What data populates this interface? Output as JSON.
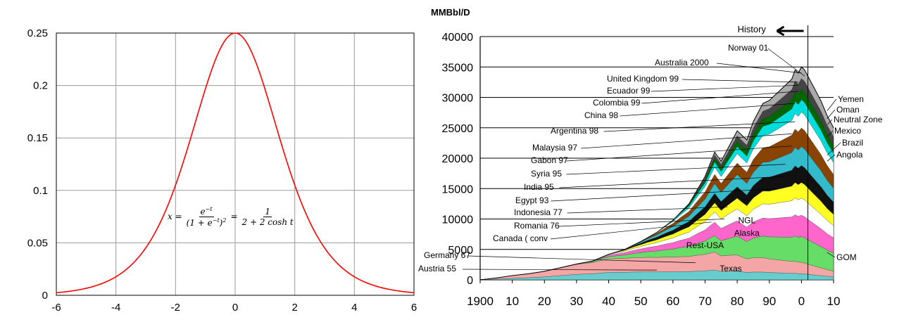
{
  "chart_data": [
    {
      "type": "line",
      "title": "",
      "xlabel": "",
      "ylabel": "",
      "xlim": [
        -6,
        6
      ],
      "ylim": [
        0,
        0.25
      ],
      "grid": true,
      "x_ticks": [
        "-6",
        "-4",
        "-2",
        "0",
        "2",
        "4",
        "6"
      ],
      "y_ticks": [
        "0",
        "0.05",
        "0.1",
        "0.15",
        "0.2",
        "0.25"
      ],
      "series": [
        {
          "color": "#ff0000",
          "x": [
            -6,
            -5.5,
            -5,
            -4.5,
            -4,
            -3.5,
            -3,
            -2.5,
            -2,
            -1.5,
            -1,
            -0.75,
            -0.5,
            -0.25,
            0,
            0.25,
            0.5,
            0.75,
            1,
            1.5,
            2,
            2.5,
            3,
            3.5,
            4,
            4.5,
            5,
            5.5,
            6
          ],
          "y": [
            0.0025,
            0.0041,
            0.0066,
            0.0109,
            0.0177,
            0.0285,
            0.0452,
            0.0701,
            0.105,
            0.149,
            0.1966,
            0.2179,
            0.235,
            0.2461,
            0.25,
            0.2461,
            0.235,
            0.2179,
            0.1966,
            0.149,
            0.105,
            0.0701,
            0.0452,
            0.0285,
            0.0177,
            0.0109,
            0.0066,
            0.0041,
            0.0025
          ]
        }
      ],
      "annotation": {
        "lhs": "x =",
        "frac1_num": "e",
        "frac1_num_sup": "−t",
        "frac1_den": "(1 + e",
        "frac1_den_sup": "−t",
        "frac1_den_end": ")",
        "frac1_den_sup2": "2",
        "eq": "=",
        "frac2_num": "1",
        "frac2_den": "2 + 2 cosh t"
      }
    },
    {
      "type": "area",
      "title": "",
      "ylabel": "MMBbl/D",
      "xlim": [
        1900,
        2010
      ],
      "ylim": [
        0,
        40000
      ],
      "y_ticks": [
        "0",
        "5000",
        "10000",
        "15000",
        "20000",
        "25000",
        "30000",
        "35000",
        "40000"
      ],
      "x_tick_values": [
        1900,
        1910,
        1920,
        1930,
        1940,
        1950,
        1960,
        1970,
        1980,
        1990,
        2000,
        2010
      ],
      "x_ticks": [
        "1900",
        "10",
        "20",
        "30",
        "40",
        "50",
        "60",
        "70",
        "80",
        "90",
        "0",
        "10"
      ],
      "history_label": "History",
      "history_divider_year": 2002,
      "stack_colors": [
        "#66cccc",
        "#f4a6a6",
        "#66dd66",
        "#ff66cc",
        "#ffffff",
        "#ffff22",
        "#111111",
        "#33bbcc",
        "#884400",
        "#ffffff",
        "#00dddd",
        "#006600",
        "#444444",
        "#aaaaaa"
      ],
      "envelope": {
        "x": [
          1900,
          1905,
          1910,
          1915,
          1920,
          1925,
          1930,
          1935,
          1940,
          1945,
          1950,
          1955,
          1960,
          1965,
          1970,
          1973,
          1975,
          1978,
          1980,
          1983,
          1985,
          1988,
          1990,
          1993,
          1995,
          1997,
          1998,
          1999,
          2000,
          2001,
          2002,
          2004,
          2006,
          2008,
          2010
        ],
        "y": [
          0,
          300,
          700,
          1000,
          1400,
          2000,
          2600,
          3100,
          4200,
          5000,
          6300,
          7800,
          9800,
          12500,
          17000,
          21000,
          19500,
          22500,
          24500,
          23000,
          26000,
          29000,
          29500,
          31000,
          32000,
          33000,
          34500,
          34000,
          35000,
          34500,
          33500,
          31500,
          29500,
          27000,
          25000
        ]
      },
      "labels_left": [
        "Norway 01",
        "Australia 2000",
        "United Kingdom 99",
        "Ecuador 99",
        "Colombia 99",
        "China 98",
        "Argentina 98",
        "Malaysia 97",
        "Gabon 97",
        "Syria 95",
        "India 95",
        "Egypt 93",
        "Indonesia 77",
        "Romania 76",
        "Canada ( conv",
        "Germany 67",
        "Austria 55"
      ],
      "labels_right": [
        "Yemen",
        "Oman",
        "Neutral Zone",
        "Mexico",
        "Brazil",
        "Angola",
        "GOM"
      ],
      "labels_inside": [
        "NGL",
        "Alaska",
        "Rest-USA",
        "Texas"
      ]
    }
  ]
}
